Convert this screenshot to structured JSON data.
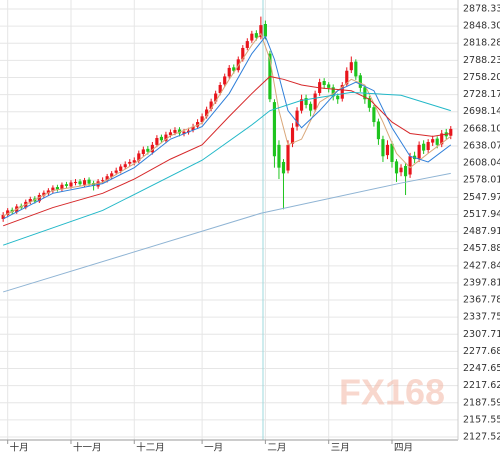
{
  "chart_data": {
    "type": "candlestick",
    "watermark": "FX168",
    "up_color": "#e8141b",
    "down_color": "#1ec41e",
    "xlim": [
      -0.7,
      100.6
    ],
    "xticks": [
      {
        "value": 1,
        "label": "十月"
      },
      {
        "value": 15,
        "label": "十一月"
      },
      {
        "value": 29,
        "label": "十二月"
      },
      {
        "value": 44,
        "label": "一月"
      },
      {
        "value": 58,
        "label": "二月"
      },
      {
        "value": 72,
        "label": "三月"
      },
      {
        "value": 86,
        "label": "四月"
      }
    ],
    "ylim": [
      2122.3,
      2894.1
    ],
    "yticks": [
      2878.33,
      {
        "value": 2848.3,
        "label": "2848.30"
      },
      2818.28,
      2788.23,
      {
        "value": 2758.2,
        "label": "2758.20"
      },
      2728.17,
      2698.14,
      {
        "value": 2668.1,
        "label": "2668.10"
      },
      2638.07,
      2608.04,
      2578.01,
      2547.97,
      2517.94,
      2487.91,
      2457.88,
      2427.84,
      2397.81,
      2367.78,
      2337.75,
      2307.71,
      2277.68,
      2247.65,
      2217.62,
      2187.59,
      2157.55,
      2127.52
    ],
    "grid": true,
    "open": [
      2510,
      2517,
      2526,
      2522,
      2533,
      2530,
      2540,
      2546,
      2541,
      2551,
      2555,
      2559,
      2566,
      2562,
      2571,
      2567,
      2573,
      2576,
      2570,
      2579,
      2573,
      2567,
      2577,
      2578,
      2584,
      2591,
      2594,
      2601,
      2607,
      2609,
      2612,
      2624,
      2633,
      2627,
      2640,
      2654,
      2647,
      2657,
      2661,
      2667,
      2659,
      2662,
      2666,
      2672,
      2680,
      2690,
      2703,
      2716,
      2731,
      2746,
      2760,
      2776,
      2771,
      2790,
      2810,
      2823,
      2836,
      2829,
      2852,
      2800,
      2715,
      2640,
      2610,
      2595,
      2642,
      2672,
      2700,
      2722,
      2712,
      2702,
      2731,
      2752,
      2746,
      2741,
      2726,
      2721,
      2746,
      2771,
      2786,
      2762,
      2741,
      2722,
      2706,
      2681,
      2650,
      2622,
      2642,
      2611,
      2592,
      2603,
      2588,
      2621,
      2616,
      2642,
      2631,
      2644,
      2651,
      2641,
      2662,
      2656
    ],
    "high": [
      2522,
      2529,
      2530,
      2536,
      2537,
      2544,
      2549,
      2550,
      2556,
      2560,
      2564,
      2569,
      2570,
      2574,
      2575,
      2578,
      2580,
      2580,
      2582,
      2583,
      2577,
      2580,
      2583,
      2589,
      2594,
      2600,
      2606,
      2611,
      2615,
      2618,
      2630,
      2637,
      2638,
      2645,
      2657,
      2658,
      2663,
      2667,
      2671,
      2671,
      2668,
      2670,
      2677,
      2685,
      2695,
      2707,
      2721,
      2735,
      2750,
      2765,
      2780,
      2781,
      2795,
      2815,
      2827,
      2840,
      2841,
      2865,
      2858,
      2805,
      2720,
      2648,
      2615,
      2648,
      2678,
      2706,
      2728,
      2728,
      2716,
      2735,
      2756,
      2757,
      2750,
      2746,
      2730,
      2750,
      2776,
      2795,
      2790,
      2766,
      2745,
      2726,
      2710,
      2686,
      2656,
      2648,
      2646,
      2615,
      2606,
      2608,
      2626,
      2628,
      2646,
      2648,
      2650,
      2656,
      2655,
      2666,
      2668,
      2673
    ],
    "low": [
      2505,
      2513,
      2518,
      2519,
      2526,
      2527,
      2536,
      2537,
      2538,
      2547,
      2551,
      2555,
      2558,
      2558,
      2564,
      2563,
      2569,
      2567,
      2566,
      2568,
      2560,
      2563,
      2572,
      2574,
      2580,
      2587,
      2590,
      2597,
      2603,
      2604,
      2608,
      2620,
      2623,
      2623,
      2636,
      2643,
      2643,
      2653,
      2657,
      2655,
      2655,
      2658,
      2662,
      2668,
      2676,
      2686,
      2699,
      2712,
      2727,
      2742,
      2756,
      2765,
      2767,
      2786,
      2806,
      2819,
      2823,
      2825,
      2825,
      2715,
      2600,
      2580,
      2527,
      2590,
      2636,
      2665,
      2695,
      2704,
      2690,
      2698,
      2726,
      2738,
      2732,
      2718,
      2712,
      2716,
      2742,
      2766,
      2754,
      2733,
      2712,
      2698,
      2672,
      2640,
      2610,
      2615,
      2600,
      2575,
      2585,
      2552,
      2582,
      2608,
      2610,
      2624,
      2626,
      2638,
      2634,
      2636,
      2650,
      2650
    ],
    "close": [
      2517,
      2525,
      2522,
      2532,
      2530,
      2540,
      2545,
      2541,
      2552,
      2556,
      2560,
      2565,
      2562,
      2570,
      2568,
      2574,
      2575,
      2571,
      2578,
      2572,
      2568,
      2576,
      2578,
      2585,
      2590,
      2595,
      2602,
      2606,
      2610,
      2613,
      2625,
      2632,
      2628,
      2640,
      2652,
      2648,
      2658,
      2662,
      2666,
      2660,
      2663,
      2665,
      2672,
      2680,
      2690,
      2702,
      2716,
      2730,
      2745,
      2760,
      2775,
      2770,
      2790,
      2810,
      2822,
      2835,
      2828,
      2850,
      2830,
      2720,
      2620,
      2600,
      2590,
      2640,
      2670,
      2700,
      2720,
      2710,
      2700,
      2730,
      2750,
      2745,
      2740,
      2725,
      2720,
      2745,
      2770,
      2785,
      2760,
      2740,
      2720,
      2705,
      2680,
      2650,
      2620,
      2640,
      2610,
      2590,
      2600,
      2585,
      2620,
      2615,
      2640,
      2630,
      2645,
      2650,
      2640,
      2660,
      2655,
      2668
    ],
    "lines": [
      {
        "color": "#d9a77a",
        "x": [
          0,
          11,
          22,
          29,
          37,
          44,
          50,
          55,
          57,
          59,
          61,
          63,
          66,
          70,
          74,
          77,
          80,
          84,
          87,
          90,
          94,
          99
        ],
        "values": [
          2515,
          2560,
          2574,
          2607,
          2656,
          2678,
          2755,
          2815,
          2835,
          2790,
          2700,
          2640,
          2650,
          2715,
          2735,
          2755,
          2745,
          2680,
          2625,
          2600,
          2625,
          2655
        ]
      },
      {
        "color": "#2f7fd9",
        "x": [
          0,
          11,
          22,
          29,
          37,
          44,
          50,
          55,
          58,
          60,
          63,
          66,
          70,
          74,
          78,
          82,
          86,
          90,
          94,
          99
        ],
        "values": [
          2510,
          2555,
          2572,
          2600,
          2650,
          2672,
          2730,
          2800,
          2830,
          2790,
          2700,
          2670,
          2700,
          2735,
          2750,
          2735,
          2670,
          2620,
          2610,
          2640
        ]
      },
      {
        "color": "#d6282a",
        "x": [
          0,
          11,
          22,
          29,
          37,
          44,
          50,
          55,
          59,
          62,
          66,
          70,
          77,
          81,
          86,
          90,
          95,
          99
        ],
        "values": [
          2498,
          2530,
          2555,
          2580,
          2615,
          2640,
          2690,
          2730,
          2760,
          2755,
          2745,
          2740,
          2735,
          2720,
          2680,
          2660,
          2655,
          2660
        ]
      },
      {
        "color": "#22b8c8",
        "x": [
          0,
          22,
          44,
          55,
          59,
          66,
          77,
          88,
          99
        ],
        "values": [
          2464,
          2525,
          2613,
          2675,
          2700,
          2718,
          2732,
          2727,
          2700
        ]
      },
      {
        "color": "#8fb4d4",
        "x": [
          0,
          57,
          88,
          99
        ],
        "values": [
          2382,
          2520,
          2573,
          2590
        ]
      }
    ]
  }
}
